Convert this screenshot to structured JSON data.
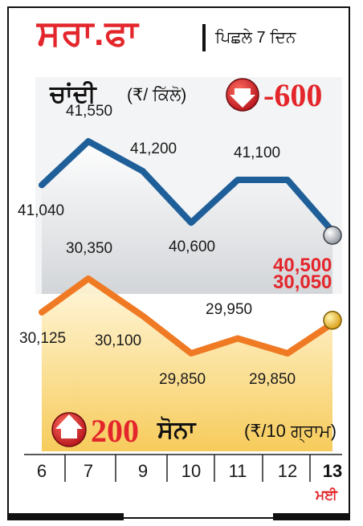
{
  "header": {
    "title": "ਸਰਾ.ਫਾ",
    "subtitle": "ਪਿਛਲੇ 7 ਦਿਨ"
  },
  "silver": {
    "title": "ਚਾਂਦੀ",
    "unit": "(₹/ ਕਿੱਲੋ)",
    "change": "-600",
    "change_direction": "down"
  },
  "gold": {
    "title": "ਸੋਨਾ",
    "unit": "(₹/10 ਗ੍ਰਾਮ)",
    "change": "200",
    "change_direction": "up"
  },
  "month_label": "ਮਈ",
  "colors": {
    "accent_red": "#e3262b",
    "silver_line": "#1f5f99",
    "gold_line": "#f07a24"
  },
  "chart_data": {
    "type": "line",
    "categories": [
      "6",
      "7",
      "9",
      "10",
      "11",
      "12",
      "13"
    ],
    "series": [
      {
        "name": "ਚਾਂਦੀ",
        "values": [
          41040,
          41550,
          41200,
          40600,
          41100,
          41100,
          40500
        ],
        "labels": [
          "41,040",
          "41,550",
          "41,200",
          "40,600",
          "41,100",
          "",
          "40,500"
        ]
      },
      {
        "name": "ਸੋਨਾ",
        "values": [
          30125,
          30350,
          30100,
          29850,
          29950,
          29850,
          30050
        ],
        "labels": [
          "30,125",
          "30,350",
          "30,100",
          "29,850",
          "29,950",
          "29,850",
          "30,050"
        ]
      }
    ],
    "xlabel": "ਮਈ",
    "grid": false
  }
}
